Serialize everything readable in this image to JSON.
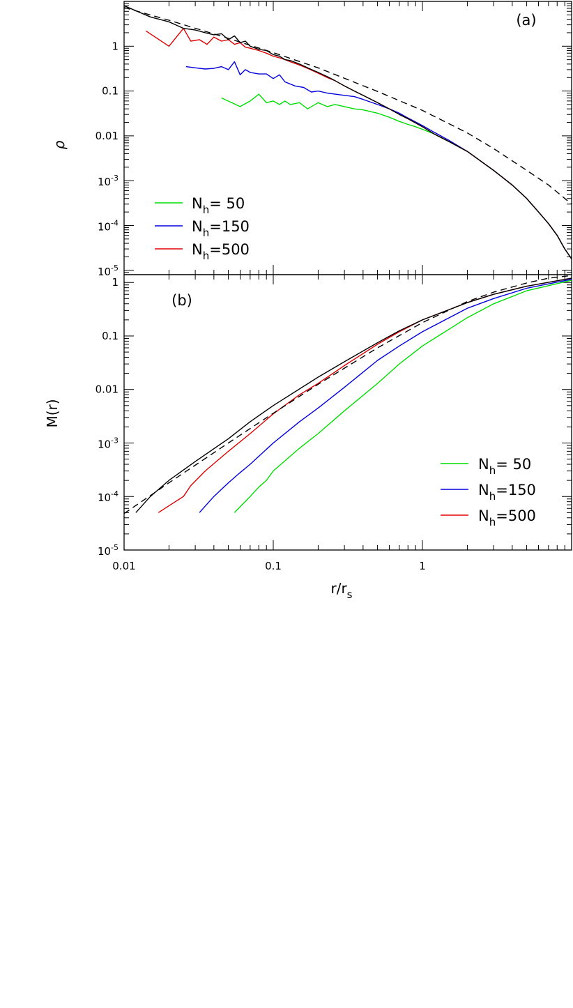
{
  "chart_data": [
    {
      "type": "line",
      "panel_label": "(a)",
      "xlabel": "",
      "ylabel": "ρ",
      "x_scale": "log",
      "y_scale": "log",
      "xlim": [
        0.01,
        10
      ],
      "ylim": [
        8e-06,
        10
      ],
      "y_ticks": [
        {
          "value": 1e-05,
          "base": "10",
          "exp": "-5"
        },
        {
          "value": 0.0001,
          "base": "10",
          "exp": "-4"
        },
        {
          "value": 0.001,
          "base": "10",
          "exp": "-3"
        },
        {
          "value": 0.01,
          "text": "0.01"
        },
        {
          "value": 0.1,
          "text": "0.1"
        },
        {
          "value": 1,
          "text": "1"
        }
      ],
      "legend": {
        "position": "lower-left",
        "entries": [
          {
            "prefix": "N",
            "sub": "h",
            "text": "=  50",
            "color": "#00dd00"
          },
          {
            "prefix": "N",
            "sub": "h",
            "text": "=150",
            "color": "#0000dd"
          },
          {
            "prefix": "N",
            "sub": "h",
            "text": "=500",
            "color": "#dd0000"
          }
        ]
      },
      "series": [
        {
          "color": "#00dd00",
          "x": [
            0.045,
            0.06,
            0.07,
            0.08,
            0.09,
            0.1,
            0.11,
            0.12,
            0.13,
            0.15,
            0.17,
            0.2,
            0.23,
            0.26,
            0.3,
            0.35,
            0.4,
            0.5,
            0.6,
            0.7,
            0.8,
            0.9,
            1.0,
            1.2,
            1.3,
            1.5,
            2.0,
            3.0,
            4.0,
            5.0,
            6.0,
            7.0,
            8.0,
            9.0,
            10.0
          ],
          "y": [
            0.07,
            0.045,
            0.06,
            0.085,
            0.055,
            0.06,
            0.05,
            0.06,
            0.05,
            0.055,
            0.04,
            0.055,
            0.045,
            0.05,
            0.045,
            0.04,
            0.038,
            0.032,
            0.026,
            0.021,
            0.018,
            0.016,
            0.014,
            0.011,
            0.0095,
            0.0075,
            0.0045,
            0.0017,
            0.0008,
            0.0004,
            0.0002,
            0.00011,
            6e-05,
            3e-05,
            1.8e-05
          ]
        },
        {
          "color": "#0000dd",
          "x": [
            0.026,
            0.03,
            0.035,
            0.04,
            0.045,
            0.05,
            0.055,
            0.06,
            0.065,
            0.07,
            0.08,
            0.09,
            0.1,
            0.11,
            0.12,
            0.14,
            0.16,
            0.18,
            0.2,
            0.23,
            0.26,
            0.3,
            0.35,
            0.4,
            0.5,
            0.6,
            0.7,
            0.8,
            1.0,
            1.2,
            1.5,
            2.0,
            3.0,
            4.0,
            5.0,
            6.0,
            7.0,
            8.0,
            9.0,
            10.0
          ],
          "y": [
            0.35,
            0.33,
            0.31,
            0.32,
            0.35,
            0.3,
            0.45,
            0.23,
            0.3,
            0.26,
            0.24,
            0.24,
            0.19,
            0.23,
            0.16,
            0.13,
            0.12,
            0.095,
            0.1,
            0.09,
            0.085,
            0.08,
            0.075,
            0.065,
            0.05,
            0.04,
            0.032,
            0.025,
            0.017,
            0.012,
            0.008,
            0.0045,
            0.0017,
            0.0008,
            0.0004,
            0.0002,
            0.00011,
            6e-05,
            3e-05,
            1.8e-05
          ]
        },
        {
          "color": "#dd0000",
          "x": [
            0.014,
            0.02,
            0.025,
            0.028,
            0.032,
            0.036,
            0.04,
            0.045,
            0.05,
            0.055,
            0.06,
            0.065,
            0.07,
            0.08,
            0.09,
            0.1,
            0.11,
            0.12,
            0.13,
            0.15,
            0.17,
            0.2,
            0.23,
            0.26,
            0.3,
            0.35,
            0.4,
            0.5,
            0.6,
            0.7,
            0.8,
            1.0,
            1.2,
            1.5,
            2.0,
            3.0,
            4.0,
            5.0,
            6.0,
            7.0,
            8.0,
            9.0,
            10.0
          ],
          "y": [
            2.2,
            1.0,
            2.5,
            1.3,
            1.4,
            1.1,
            1.6,
            1.3,
            1.4,
            1.1,
            1.2,
            0.95,
            0.9,
            0.8,
            0.7,
            0.6,
            0.55,
            0.5,
            0.45,
            0.38,
            0.32,
            0.25,
            0.2,
            0.17,
            0.13,
            0.1,
            0.08,
            0.055,
            0.04,
            0.03,
            0.024,
            0.016,
            0.011,
            0.0075,
            0.0045,
            0.0017,
            0.0008,
            0.0004,
            0.0002,
            0.00011,
            6e-05,
            3e-05,
            1.8e-05
          ]
        },
        {
          "color": "#000000",
          "x": [
            0.01,
            0.015,
            0.02,
            0.025,
            0.03,
            0.035,
            0.04,
            0.045,
            0.05,
            0.055,
            0.06,
            0.065,
            0.07,
            0.08,
            0.09,
            0.1,
            0.11,
            0.12,
            0.13,
            0.15,
            0.17,
            0.2,
            0.23,
            0.26,
            0.3,
            0.35,
            0.4,
            0.5,
            0.6,
            0.7,
            0.8,
            1.0,
            1.2,
            1.5,
            2.0,
            3.0,
            4.0,
            5.0,
            6.0,
            7.0,
            8.0,
            9.0,
            10.0
          ],
          "y": [
            8.0,
            4.5,
            3.5,
            2.5,
            2.3,
            2.0,
            1.8,
            1.9,
            1.4,
            1.7,
            1.2,
            1.3,
            1.0,
            0.85,
            0.8,
            0.65,
            0.6,
            0.5,
            0.48,
            0.4,
            0.33,
            0.26,
            0.21,
            0.17,
            0.13,
            0.1,
            0.08,
            0.055,
            0.04,
            0.03,
            0.024,
            0.016,
            0.011,
            0.0075,
            0.0045,
            0.0017,
            0.0008,
            0.0004,
            0.0002,
            0.00011,
            6e-05,
            3e-05,
            1.8e-05
          ]
        },
        {
          "color": "#000000",
          "dashed": true,
          "x": [
            0.01,
            0.02,
            0.05,
            0.1,
            0.2,
            0.5,
            1.0,
            2.0,
            3.0,
            5.0,
            7.0,
            10.0
          ],
          "y": [
            7.3,
            3.8,
            1.5,
            0.72,
            0.33,
            0.098,
            0.037,
            0.0116,
            0.0052,
            0.0017,
            0.0008,
            0.0003
          ]
        }
      ]
    },
    {
      "type": "line",
      "panel_label": "(b)",
      "xlabel": "r/r_s",
      "ylabel": "M(r)",
      "x_scale": "log",
      "y_scale": "log",
      "xlim": [
        0.01,
        10
      ],
      "ylim": [
        1e-05,
        1.4
      ],
      "x_ticks": [
        {
          "value": 0.01,
          "text": "0.01"
        },
        {
          "value": 0.1,
          "text": "0.1"
        },
        {
          "value": 1,
          "text": "1"
        }
      ],
      "y_ticks": [
        {
          "value": 1e-05,
          "base": "10",
          "exp": "-5"
        },
        {
          "value": 0.0001,
          "base": "10",
          "exp": "-4"
        },
        {
          "value": 0.001,
          "base": "10",
          "exp": "-3"
        },
        {
          "value": 0.01,
          "text": "0.01"
        },
        {
          "value": 0.1,
          "text": "0.1"
        },
        {
          "value": 1,
          "text": "1"
        }
      ],
      "legend": {
        "position": "lower-right",
        "entries": [
          {
            "prefix": "N",
            "sub": "h",
            "text": "=  50",
            "color": "#00dd00"
          },
          {
            "prefix": "N",
            "sub": "h",
            "text": "=150",
            "color": "#0000dd"
          },
          {
            "prefix": "N",
            "sub": "h",
            "text": "=500",
            "color": "#dd0000"
          }
        ]
      },
      "series": [
        {
          "color": "#00dd00",
          "x": [
            0.055,
            0.07,
            0.08,
            0.09,
            0.1,
            0.15,
            0.2,
            0.3,
            0.5,
            0.7,
            1.0,
            2.0,
            3.0,
            5.0,
            10.0
          ],
          "y": [
            5e-05,
            0.0001,
            0.00015,
            0.0002,
            0.0003,
            0.0008,
            0.0015,
            0.004,
            0.013,
            0.03,
            0.065,
            0.22,
            0.4,
            0.7,
            1.1
          ]
        },
        {
          "color": "#0000dd",
          "x": [
            0.032,
            0.04,
            0.05,
            0.06,
            0.07,
            0.1,
            0.15,
            0.2,
            0.3,
            0.5,
            0.7,
            1.0,
            2.0,
            3.0,
            5.0,
            10.0
          ],
          "y": [
            5e-05,
            0.0001,
            0.00018,
            0.00028,
            0.0004,
            0.001,
            0.0025,
            0.0045,
            0.011,
            0.035,
            0.065,
            0.12,
            0.33,
            0.5,
            0.78,
            1.15
          ]
        },
        {
          "color": "#dd0000",
          "x": [
            0.017,
            0.025,
            0.028,
            0.035,
            0.05,
            0.07,
            0.1,
            0.15,
            0.2,
            0.3,
            0.5,
            0.7,
            1.0,
            2.0,
            3.0,
            5.0,
            10.0
          ],
          "y": [
            5e-05,
            0.0001,
            0.00016,
            0.0003,
            0.0007,
            0.0015,
            0.0035,
            0.008,
            0.013,
            0.028,
            0.07,
            0.12,
            0.2,
            0.42,
            0.6,
            0.85,
            1.2
          ]
        },
        {
          "color": "#000000",
          "x": [
            0.012,
            0.015,
            0.02,
            0.03,
            0.05,
            0.07,
            0.1,
            0.2,
            0.3,
            0.5,
            0.7,
            1.0,
            2.0,
            3.0,
            5.0,
            10.0
          ],
          "y": [
            5e-05,
            0.0001,
            0.0002,
            0.00045,
            0.0012,
            0.0025,
            0.005,
            0.017,
            0.033,
            0.075,
            0.125,
            0.2,
            0.42,
            0.6,
            0.85,
            1.2
          ]
        },
        {
          "color": "#000000",
          "dashed": true,
          "x": [
            0.01,
            0.02,
            0.05,
            0.1,
            0.2,
            0.5,
            1.0,
            2.0,
            3.0,
            5.0,
            7.0,
            10.0
          ],
          "y": [
            4.8e-05,
            0.00018,
            0.001,
            0.0036,
            0.0125,
            0.06,
            0.178,
            0.44,
            0.66,
            0.98,
            1.2,
            1.35
          ]
        }
      ]
    }
  ]
}
